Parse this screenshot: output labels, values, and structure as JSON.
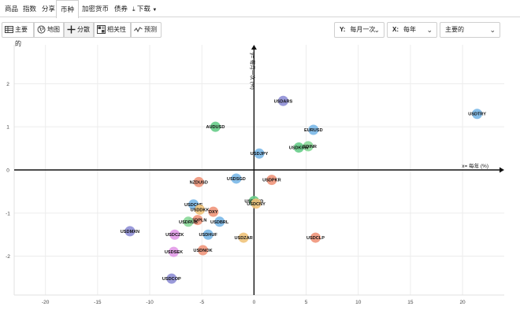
{
  "nav": {
    "tabs": [
      {
        "label": "商品"
      },
      {
        "label": "指数"
      },
      {
        "label": "分享"
      },
      {
        "label": "币种"
      },
      {
        "label": "加密货币"
      },
      {
        "label": "债券"
      },
      {
        "label": "下载"
      }
    ],
    "active_tab": "币种"
  },
  "toolbar": {
    "buttons": [
      {
        "label": "主要的",
        "icon": "table-icon"
      },
      {
        "label": "地图",
        "icon": "globe-icon"
      },
      {
        "label": "分散",
        "icon": "scatter-plus-icon"
      },
      {
        "label": "相关性",
        "icon": "grid-icon"
      },
      {
        "label": "预测",
        "icon": "trend-icon"
      }
    ],
    "y_select": {
      "prefix": "Y:",
      "value": "每月一次"
    },
    "x_select": {
      "prefix": "X:",
      "value": "每年"
    },
    "group_select": {
      "value": "主要的"
    }
  },
  "chart_data": {
    "type": "scatter",
    "xlabel": "x= 每年 (%)",
    "ylabel": "y= 每月一次 (%)",
    "xlim": [
      -23,
      24
    ],
    "ylim": [
      -2.9,
      2.9
    ],
    "xticks": [
      -20,
      -15,
      -10,
      -5,
      0,
      5,
      10,
      15,
      20
    ],
    "yticks": [
      -2,
      -1,
      0,
      1,
      2
    ],
    "grid": true,
    "points": [
      {
        "label": "USDTRY",
        "x": 21.4,
        "y": 1.3,
        "color": "#7ab8e8"
      },
      {
        "label": "USDARS",
        "x": 2.8,
        "y": 1.6,
        "color": "#8f8fd6"
      },
      {
        "label": "AUDUSD",
        "x": -3.7,
        "y": 1.0,
        "color": "#66cc88"
      },
      {
        "label": "EURUSD",
        "x": 5.7,
        "y": 0.93,
        "color": "#7ab8e8"
      },
      {
        "label": "USDINR",
        "x": 5.2,
        "y": 0.55,
        "color": "#88d898"
      },
      {
        "label": "USDKRW",
        "x": 4.3,
        "y": 0.52,
        "color": "#66cc88"
      },
      {
        "label": "USDJPY",
        "x": 0.5,
        "y": 0.38,
        "color": "#7ab8e8"
      },
      {
        "label": "USDSGD",
        "x": -1.7,
        "y": -0.2,
        "color": "#7ab8e8"
      },
      {
        "label": "USDPKR",
        "x": 1.7,
        "y": -0.23,
        "color": "#f0957a"
      },
      {
        "label": "NZDUSD",
        "x": -5.3,
        "y": -0.28,
        "color": "#f0957a"
      },
      {
        "label": "USDHKD",
        "x": 0.0,
        "y": -0.72,
        "color": "#66cc88"
      },
      {
        "label": "USDCNY",
        "x": 0.2,
        "y": -0.78,
        "color": "#f0c37a"
      },
      {
        "label": "USDCHF",
        "x": -5.8,
        "y": -0.8,
        "color": "#7ab8e8"
      },
      {
        "label": "USDDKK",
        "x": -5.2,
        "y": -0.92,
        "color": "#f0c37a"
      },
      {
        "label": "DXY",
        "x": -3.9,
        "y": -0.97,
        "color": "#f0957a"
      },
      {
        "label": "USDPLN",
        "x": -5.4,
        "y": -1.16,
        "color": "#f0957a"
      },
      {
        "label": "USDRUB",
        "x": -6.3,
        "y": -1.2,
        "color": "#88d898"
      },
      {
        "label": "USDBRL",
        "x": -3.3,
        "y": -1.2,
        "color": "#7ab8e8"
      },
      {
        "label": "USDMXN",
        "x": -11.9,
        "y": -1.42,
        "color": "#8f8fd6"
      },
      {
        "label": "USDCZK",
        "x": -7.6,
        "y": -1.5,
        "color": "#e29ae8"
      },
      {
        "label": "USDHUF",
        "x": -4.4,
        "y": -1.5,
        "color": "#7ab8e8"
      },
      {
        "label": "USDZAR",
        "x": -1.0,
        "y": -1.57,
        "color": "#f0c37a"
      },
      {
        "label": "USDCLP",
        "x": 5.9,
        "y": -1.57,
        "color": "#f0957a"
      },
      {
        "label": "USDNOK",
        "x": -4.9,
        "y": -1.86,
        "color": "#f0957a"
      },
      {
        "label": "USDSEK",
        "x": -7.7,
        "y": -1.9,
        "color": "#e29ae8"
      },
      {
        "label": "USDCOP",
        "x": -7.9,
        "y": -2.52,
        "color": "#8f8fd6"
      }
    ]
  }
}
